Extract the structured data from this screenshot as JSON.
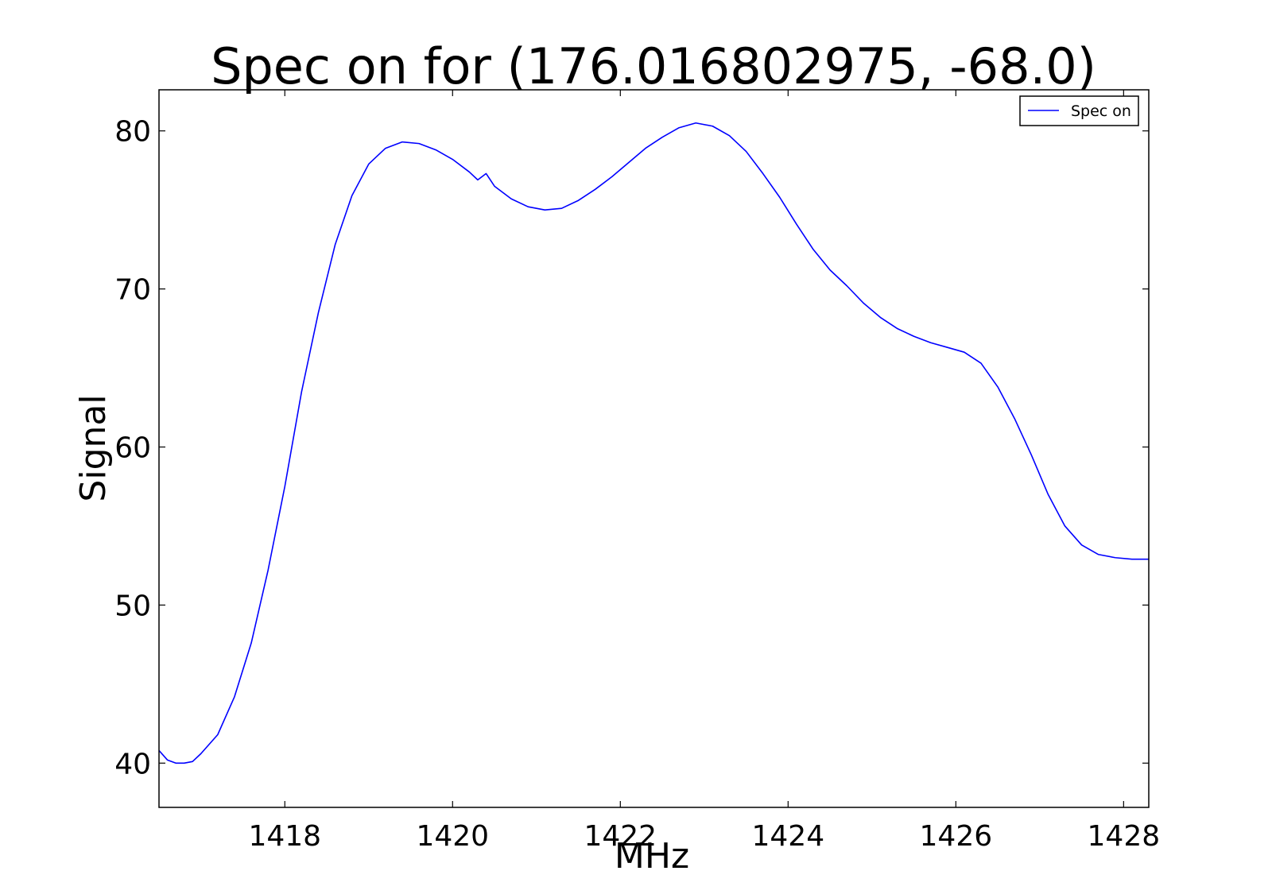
{
  "chart_data": {
    "type": "line",
    "title": "Spec on for (176.016802975, -68.0)",
    "xlabel": "MHz",
    "ylabel": "Signal",
    "xlim": [
      1416.5,
      1428.3
    ],
    "ylim": [
      37.2,
      82.6
    ],
    "x_ticks": [
      1418,
      1420,
      1422,
      1424,
      1426,
      1428
    ],
    "y_ticks": [
      40,
      50,
      60,
      70,
      80
    ],
    "grid": false,
    "legend_position": "top-right",
    "series": [
      {
        "name": "Spec on",
        "color": "#0000ff",
        "x": [
          1416.5,
          1416.6,
          1416.7,
          1416.8,
          1416.9,
          1417.0,
          1417.2,
          1417.4,
          1417.6,
          1417.8,
          1418.0,
          1418.2,
          1418.4,
          1418.6,
          1418.8,
          1419.0,
          1419.2,
          1419.4,
          1419.6,
          1419.8,
          1420.0,
          1420.2,
          1420.3,
          1420.4,
          1420.5,
          1420.7,
          1420.9,
          1421.1,
          1421.3,
          1421.5,
          1421.7,
          1421.9,
          1422.1,
          1422.3,
          1422.5,
          1422.7,
          1422.9,
          1423.1,
          1423.3,
          1423.5,
          1423.7,
          1423.9,
          1424.1,
          1424.3,
          1424.5,
          1424.7,
          1424.9,
          1425.1,
          1425.3,
          1425.5,
          1425.7,
          1425.9,
          1426.1,
          1426.3,
          1426.5,
          1426.7,
          1426.9,
          1427.1,
          1427.3,
          1427.5,
          1427.7,
          1427.9,
          1428.1,
          1428.3
        ],
        "values": [
          40.8,
          40.2,
          40.0,
          40.0,
          40.1,
          40.6,
          41.8,
          44.2,
          47.6,
          52.2,
          57.5,
          63.5,
          68.5,
          72.8,
          75.9,
          77.9,
          78.9,
          79.3,
          79.2,
          78.8,
          78.2,
          77.4,
          76.9,
          77.3,
          76.5,
          75.7,
          75.2,
          75.0,
          75.1,
          75.6,
          76.3,
          77.1,
          78.0,
          78.9,
          79.6,
          80.2,
          80.5,
          80.3,
          79.7,
          78.7,
          77.3,
          75.8,
          74.1,
          72.5,
          71.2,
          70.2,
          69.1,
          68.2,
          67.5,
          67.0,
          66.6,
          66.3,
          66.0,
          65.3,
          63.8,
          61.8,
          59.5,
          57.0,
          55.0,
          53.8,
          53.2,
          53.0,
          52.9,
          52.9
        ]
      }
    ]
  }
}
